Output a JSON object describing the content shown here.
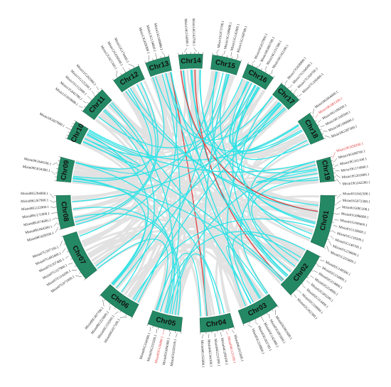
{
  "chromosomes": [
    {
      "name": "Chr01",
      "genes": [
        {
          "id": "Misin01G042300.1"
        },
        {
          "id": "Misin01G072300.1"
        },
        {
          "id": "Misin01G095100.1"
        },
        {
          "id": "Misin01G096600.1"
        },
        {
          "id": "Misin01G098400.1"
        },
        {
          "id": "Misin01G128600.1"
        },
        {
          "id": "Misin01G130200.1"
        },
        {
          "id": "Misin01G140700.1"
        },
        {
          "id": "Misin01G234600.1"
        },
        {
          "id": "Misin01G255600.1"
        }
      ]
    },
    {
      "name": "Chr02",
      "genes": [
        {
          "id": "Misin02G140500.1"
        },
        {
          "id": "Misin02G154800.1"
        },
        {
          "id": "Misin02G214800.1"
        },
        {
          "id": "Misin02G254900.1"
        },
        {
          "id": "Misin02G305200.1"
        },
        {
          "id": "Misin02G314400.1"
        },
        {
          "id": "Misin02G339900.1"
        },
        {
          "id": "Misin02G362300.1"
        }
      ]
    },
    {
      "name": "Chr03",
      "genes": [
        {
          "id": "Misin03G061600.1"
        },
        {
          "id": "Misin03G081600.1"
        },
        {
          "id": "Misin03G142400.1"
        },
        {
          "id": "Misin03G263700.1"
        },
        {
          "id": "Misin03G318800.1"
        }
      ]
    },
    {
      "name": "Chr04",
      "genes": [
        {
          "id": "Misin04G015400.1"
        },
        {
          "id": "Misin04G121100.1",
          "highlight": true
        },
        {
          "id": "Misin04G208100.1"
        },
        {
          "id": "Misin04G231500.1"
        },
        {
          "id": "Misin04G344100.1"
        },
        {
          "id": "Misin04G352000.1"
        }
      ]
    },
    {
      "name": "Chr05",
      "genes": [
        {
          "id": "Misin05G028100.1"
        },
        {
          "id": "Misin05G094300.1"
        },
        {
          "id": "Misin05G118400.1",
          "highlight": true
        },
        {
          "id": "Misin05G235200.1"
        },
        {
          "id": "Misin05G334300.1"
        }
      ]
    },
    {
      "name": "Chr06",
      "genes": [
        {
          "id": "Misin06G017100.1"
        },
        {
          "id": "Misin06G116200.1"
        },
        {
          "id": "Misin06G223600.1"
        },
        {
          "id": "Misin06G307700.1"
        }
      ]
    },
    {
      "name": "Chr07",
      "genes": [
        {
          "id": "Misin07G071000.1"
        },
        {
          "id": "Misin07G314200.1"
        },
        {
          "id": "Misin07G327900.1"
        },
        {
          "id": "Misin07G357400.1"
        },
        {
          "id": "Misin07G495400.1"
        },
        {
          "id": "Misin07G507100.1"
        }
      ]
    },
    {
      "name": "Chr08",
      "genes": [
        {
          "id": "Misin08G028500.1"
        },
        {
          "id": "Misin08G064300.1"
        },
        {
          "id": "Misin08G074600.1"
        },
        {
          "id": "Misin08G171900.1"
        },
        {
          "id": "Misin08G222000.1"
        },
        {
          "id": "Misin08G267900.1"
        },
        {
          "id": "Misin08G294000.1"
        }
      ]
    },
    {
      "name": "Chr09",
      "genes": [
        {
          "id": "Misin09G034300.1"
        },
        {
          "id": "Misin09G040500.1"
        }
      ]
    },
    {
      "name": "Chr10",
      "genes": [
        {
          "id": "Misin10G027800.1"
        }
      ]
    },
    {
      "name": "Chr11",
      "genes": [
        {
          "id": "Misin11G010600.1"
        },
        {
          "id": "Misin11G042700.1"
        },
        {
          "id": "Misin11G112600.1"
        },
        {
          "id": "Misin11G125300.1"
        },
        {
          "id": "Misin11G262000.1"
        }
      ]
    },
    {
      "name": "Chr12",
      "genes": [
        {
          "id": "Misin12G021300.1"
        },
        {
          "id": "Misin12G026900.1"
        },
        {
          "id": "Misin12G170000.1"
        }
      ]
    },
    {
      "name": "Chr13",
      "genes": [
        {
          "id": "Misin13G028300.1"
        },
        {
          "id": "Misin13G134600.1"
        },
        {
          "id": "Misin13G168000.1"
        }
      ]
    },
    {
      "name": "Chr14",
      "genes": [
        {
          "id": "Misin14G156000.1"
        },
        {
          "id": "Misin14G163700.1"
        }
      ]
    },
    {
      "name": "Chr15",
      "genes": [
        {
          "id": "Misin15G073700.1"
        },
        {
          "id": "Misin15G100800.1"
        },
        {
          "id": "Misin15G145900.1"
        },
        {
          "id": "Misin15G168700.1"
        }
      ]
    },
    {
      "name": "Chr16",
      "genes": [
        {
          "id": "Misin16G037800.1"
        },
        {
          "id": "Misin16G085700.1"
        },
        {
          "id": "Misin16G151300.1"
        },
        {
          "id": "Misin16G162100.1"
        }
      ]
    },
    {
      "name": "Chr17",
      "genes": [
        {
          "id": "Misin17G058900.1"
        },
        {
          "id": "Misin17G104500.1"
        },
        {
          "id": "Misin17G160700.1"
        },
        {
          "id": "Misin17G166400.1"
        }
      ]
    },
    {
      "name": "Chr18",
      "genes": [
        {
          "id": "Misin18G064400.1"
        },
        {
          "id": "Misin18G081200.1",
          "highlight": true
        },
        {
          "id": "Misin18G166200.1"
        },
        {
          "id": "Misin18G169500.1"
        },
        {
          "id": "Misin18G186000.1"
        },
        {
          "id": "Misin18G287300.1"
        }
      ]
    },
    {
      "name": "Chr19",
      "genes": [
        {
          "id": "Misin19G028200.1",
          "highlight": true
        },
        {
          "id": "Misin19G068700.1"
        },
        {
          "id": "Misin19G161100.1"
        },
        {
          "id": "Misin19G174900.1"
        },
        {
          "id": "Misin19G201800.1"
        },
        {
          "id": "Misin19G242200.1"
        }
      ]
    }
  ]
}
